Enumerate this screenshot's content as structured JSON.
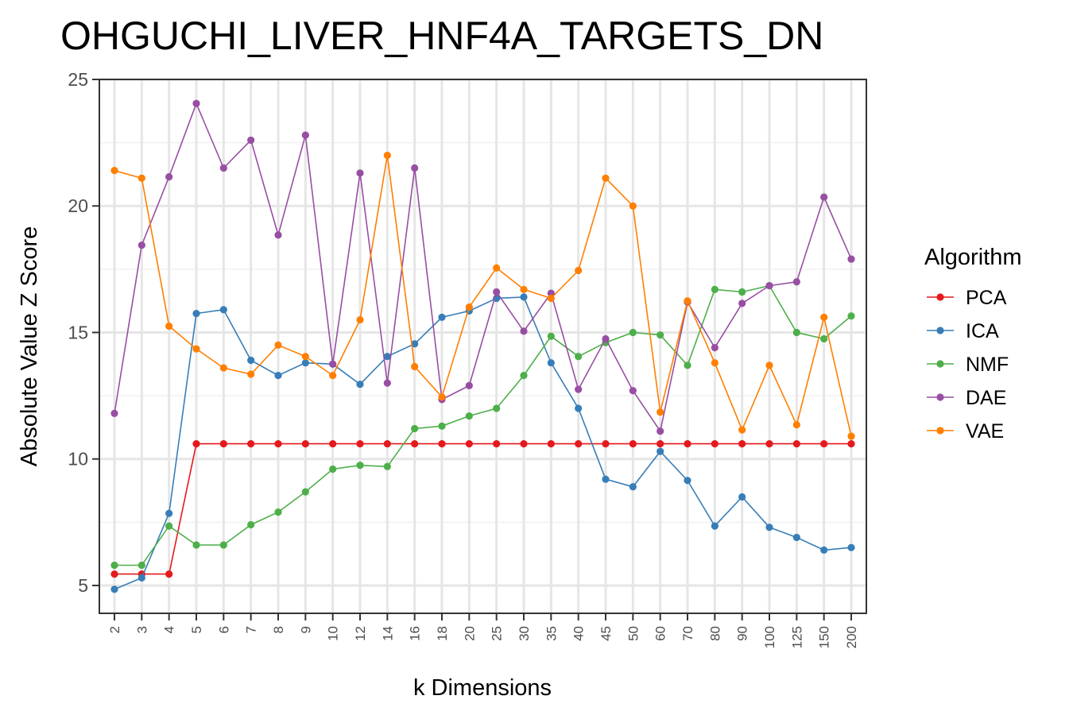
{
  "chart_data": {
    "type": "line",
    "title": "OHGUCHI_LIVER_HNF4A_TARGETS_DN",
    "xlabel": "k Dimensions",
    "ylabel": "Absolute Value Z Score",
    "ylim": [
      3.9,
      25
    ],
    "yticks": [
      5,
      10,
      15,
      20,
      25
    ],
    "grid": true,
    "legend_position": "right",
    "legend_title": "Algorithm",
    "categories": [
      "2",
      "3",
      "4",
      "5",
      "6",
      "7",
      "8",
      "9",
      "10",
      "12",
      "14",
      "16",
      "18",
      "20",
      "25",
      "30",
      "35",
      "40",
      "45",
      "50",
      "60",
      "70",
      "80",
      "90",
      "100",
      "125",
      "150",
      "200"
    ],
    "series": [
      {
        "name": "PCA",
        "color": "#e41a1c",
        "values": [
          5.45,
          5.45,
          5.45,
          10.6,
          10.6,
          10.6,
          10.6,
          10.6,
          10.6,
          10.6,
          10.6,
          10.6,
          10.6,
          10.6,
          10.6,
          10.6,
          10.6,
          10.6,
          10.6,
          10.6,
          10.6,
          10.6,
          10.6,
          10.6,
          10.6,
          10.6,
          10.6,
          10.6
        ]
      },
      {
        "name": "ICA",
        "color": "#377eb8",
        "values": [
          4.85,
          5.3,
          7.85,
          15.75,
          15.9,
          13.9,
          13.3,
          13.8,
          13.75,
          12.95,
          14.05,
          14.55,
          15.6,
          15.85,
          16.35,
          16.4,
          13.8,
          12.0,
          9.2,
          8.9,
          10.3,
          9.15,
          7.35,
          8.5,
          7.3,
          6.9,
          6.4,
          6.5
        ]
      },
      {
        "name": "NMF",
        "color": "#4daf4a",
        "values": [
          5.8,
          5.8,
          7.35,
          6.6,
          6.6,
          7.4,
          7.9,
          8.7,
          9.6,
          9.75,
          9.7,
          11.2,
          11.3,
          11.7,
          12.0,
          13.3,
          14.85,
          14.05,
          14.6,
          15.0,
          14.9,
          13.7,
          16.7,
          16.6,
          16.85,
          15.0,
          14.75,
          15.65
        ]
      },
      {
        "name": "DAE",
        "color": "#984ea3",
        "values": [
          11.8,
          18.45,
          21.15,
          24.05,
          21.5,
          22.6,
          18.85,
          22.8,
          13.75,
          21.3,
          13.0,
          21.5,
          12.35,
          12.9,
          16.6,
          15.05,
          16.55,
          12.75,
          14.75,
          12.7,
          11.1,
          16.2,
          14.4,
          16.15,
          16.85,
          17.0,
          20.35,
          17.9
        ]
      },
      {
        "name": "VAE",
        "color": "#ff7f00",
        "values": [
          21.4,
          21.1,
          15.25,
          14.35,
          13.6,
          13.35,
          14.5,
          14.05,
          13.3,
          15.5,
          22.0,
          13.65,
          12.45,
          16.0,
          17.55,
          16.7,
          16.35,
          17.45,
          21.1,
          20.0,
          11.85,
          16.25,
          13.8,
          11.15,
          13.7,
          11.35,
          15.6,
          10.9
        ]
      }
    ]
  }
}
